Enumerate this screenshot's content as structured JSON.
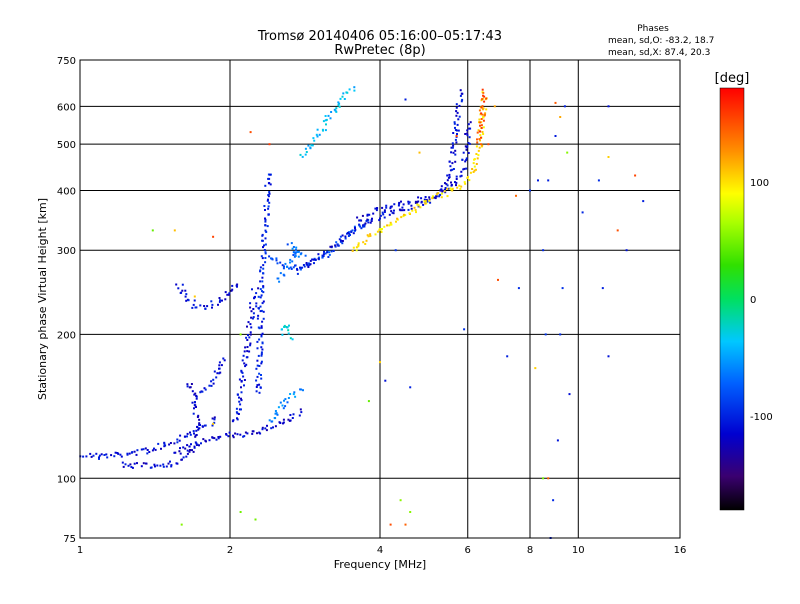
{
  "chart_data": {
    "type": "scatter",
    "title": "Tromsø 20140406 05:16:00–05:17:43",
    "subtitle": "RwPretec (8p)",
    "xlabel": "Frequency [MHz]",
    "ylabel": "Stationary phase Virtual Height [km]",
    "x_scale": "log",
    "y_scale": "log",
    "xlim": [
      1,
      16
    ],
    "ylim": [
      75,
      750
    ],
    "x_ticks": [
      1,
      2,
      4,
      6,
      8,
      10,
      16
    ],
    "x_tick_labels": [
      "1",
      "2",
      "4",
      "6",
      "8",
      "10",
      "16"
    ],
    "x_grid_lines": [
      2,
      4,
      6,
      8,
      10
    ],
    "y_ticks": [
      75,
      100,
      200,
      300,
      400,
      500,
      600,
      750
    ],
    "y_tick_labels": [
      "75",
      "100",
      "200",
      "300",
      "400",
      "500",
      "600",
      "750"
    ],
    "y_grid_lines": [
      100,
      200,
      300,
      400,
      500,
      600
    ],
    "grid": true,
    "stats": {
      "heading": "Phases",
      "line_o": "mean, sd,O: -83.2, 18.7",
      "line_x": "mean, sd,X:  87.4, 20.3"
    },
    "colorbar": {
      "label": "[deg]",
      "min": -180,
      "max": 180,
      "ticks": [
        100,
        0,
        -100
      ],
      "tick_labels": [
        "100",
        "0",
        "-100"
      ]
    },
    "traces": [
      {
        "points": [
          [
            1.0,
            112
          ],
          [
            1.1,
            111
          ],
          [
            1.2,
            112
          ],
          [
            1.35,
            114
          ],
          [
            1.5,
            118
          ],
          [
            1.62,
            123
          ],
          [
            1.75,
            128
          ],
          [
            1.9,
            133
          ]
        ],
        "phase": -110
      },
      {
        "points": [
          [
            1.22,
            107
          ],
          [
            1.35,
            106
          ],
          [
            1.5,
            107
          ],
          [
            1.6,
            109
          ],
          [
            1.68,
            115
          ],
          [
            1.72,
            128
          ],
          [
            1.7,
            145
          ],
          [
            1.66,
            160
          ]
        ],
        "phase": -115
      },
      {
        "points": [
          [
            1.72,
            150
          ],
          [
            1.8,
            155
          ],
          [
            1.88,
            165
          ],
          [
            1.94,
            180
          ]
        ],
        "phase": -110
      },
      {
        "points": [
          [
            1.55,
            112
          ],
          [
            1.7,
            118
          ],
          [
            1.85,
            122
          ],
          [
            2.0,
            123
          ],
          [
            2.2,
            124
          ],
          [
            2.4,
            128
          ],
          [
            2.6,
            132
          ],
          [
            2.8,
            138
          ]
        ],
        "phase": -115
      },
      {
        "points": [
          [
            2.05,
            130
          ],
          [
            2.1,
            150
          ],
          [
            2.15,
            175
          ],
          [
            2.18,
            200
          ],
          [
            2.22,
            225
          ],
          [
            2.25,
            250
          ]
        ],
        "phase": -110
      },
      {
        "points": [
          [
            2.28,
            150
          ],
          [
            2.3,
            200
          ],
          [
            2.32,
            260
          ],
          [
            2.35,
            330
          ],
          [
            2.38,
            390
          ],
          [
            2.4,
            440
          ]
        ],
        "phase": -100
      },
      {
        "points": [
          [
            2.4,
            130
          ],
          [
            2.5,
            140
          ],
          [
            2.6,
            145
          ],
          [
            2.7,
            150
          ],
          [
            2.8,
            155
          ]
        ],
        "phase": -60
      },
      {
        "points": [
          [
            1.58,
            255
          ],
          [
            1.62,
            240
          ],
          [
            1.7,
            230
          ],
          [
            1.78,
            228
          ],
          [
            1.85,
            232
          ],
          [
            1.92,
            235
          ],
          [
            2.0,
            245
          ],
          [
            2.1,
            255
          ]
        ],
        "phase": -110
      },
      {
        "points": [
          [
            2.4,
            290
          ],
          [
            2.55,
            280
          ],
          [
            2.7,
            275
          ],
          [
            2.85,
            278
          ],
          [
            3.0,
            285
          ],
          [
            3.2,
            300
          ],
          [
            3.4,
            320
          ],
          [
            3.6,
            335
          ],
          [
            3.8,
            345
          ]
        ],
        "phase": -85
      },
      {
        "points": [
          [
            2.5,
            260
          ],
          [
            2.7,
            300
          ],
          [
            2.8,
            290
          ],
          [
            2.6,
            310
          ]
        ],
        "phase": -70
      },
      {
        "points": [
          [
            2.7,
            270
          ],
          [
            3.0,
            290
          ],
          [
            3.3,
            310
          ],
          [
            3.6,
            335
          ],
          [
            3.9,
            350
          ],
          [
            4.2,
            360
          ],
          [
            4.6,
            370
          ],
          [
            5.0,
            380
          ],
          [
            5.3,
            395
          ],
          [
            5.5,
            420
          ],
          [
            5.6,
            470
          ],
          [
            5.7,
            540
          ],
          [
            5.75,
            600
          ],
          [
            5.8,
            650
          ]
        ],
        "phase": -110
      },
      {
        "points": [
          [
            3.6,
            345
          ],
          [
            4.0,
            365
          ],
          [
            4.5,
            375
          ],
          [
            5.0,
            385
          ],
          [
            5.4,
            400
          ],
          [
            5.7,
            420
          ],
          [
            5.9,
            450
          ],
          [
            6.0,
            500
          ],
          [
            6.0,
            560
          ]
        ],
        "phase": -115
      },
      {
        "points": [
          [
            3.5,
            300
          ],
          [
            3.8,
            320
          ],
          [
            4.2,
            340
          ],
          [
            4.6,
            360
          ],
          [
            5.0,
            380
          ],
          [
            5.4,
            395
          ],
          [
            5.8,
            410
          ],
          [
            6.1,
            430
          ],
          [
            6.3,
            480
          ],
          [
            6.4,
            550
          ],
          [
            6.5,
            640
          ]
        ],
        "phase": 100
      },
      {
        "points": [
          [
            6.3,
            500
          ],
          [
            6.4,
            560
          ],
          [
            6.45,
            620
          ],
          [
            6.5,
            650
          ]
        ],
        "phase": 150
      },
      {
        "points": [
          [
            2.8,
            470
          ],
          [
            3.0,
            520
          ],
          [
            3.2,
            580
          ],
          [
            3.4,
            630
          ],
          [
            3.55,
            660
          ]
        ],
        "phase": -40
      },
      {
        "points": [
          [
            2.55,
            200
          ],
          [
            2.6,
            210
          ],
          [
            2.65,
            195
          ]
        ],
        "phase": -30
      }
    ],
    "scatter": [
      {
        "points": [
          [
            8.9,
            90
          ],
          [
            9.1,
            120
          ],
          [
            8.8,
            75
          ],
          [
            9.4,
            600
          ],
          [
            8.5,
            300
          ],
          [
            8.6,
            200
          ],
          [
            9.3,
            250
          ],
          [
            8.7,
            420
          ],
          [
            9.0,
            520
          ],
          [
            11.0,
            420
          ],
          [
            11.2,
            250
          ],
          [
            12.5,
            300
          ],
          [
            13.5,
            380
          ],
          [
            11.5,
            600
          ],
          [
            8.3,
            420
          ],
          [
            9.6,
            150
          ],
          [
            10.2,
            360
          ],
          [
            4.3,
            300
          ],
          [
            4.5,
            620
          ],
          [
            4.1,
            160
          ],
          [
            4.6,
            155
          ],
          [
            7.2,
            180
          ],
          [
            7.6,
            250
          ],
          [
            5.9,
            205
          ],
          [
            8.0,
            400
          ],
          [
            9.2,
            200
          ],
          [
            11.5,
            180
          ]
        ],
        "phase": -100
      },
      {
        "points": [
          [
            2.2,
            530
          ],
          [
            2.4,
            500
          ],
          [
            1.85,
            320
          ],
          [
            4.2,
            80
          ],
          [
            4.5,
            80
          ],
          [
            5.7,
            520
          ],
          [
            9.0,
            610
          ],
          [
            8.7,
            100
          ],
          [
            12.0,
            330
          ],
          [
            13.0,
            430
          ],
          [
            6.6,
            500
          ],
          [
            6.9,
            260
          ],
          [
            7.5,
            390
          ]
        ],
        "phase": 150
      },
      {
        "points": [
          [
            1.7,
            240
          ],
          [
            1.85,
            130
          ],
          [
            1.55,
            330
          ],
          [
            4.0,
            175
          ],
          [
            4.8,
            480
          ],
          [
            6.8,
            600
          ],
          [
            11.5,
            470
          ],
          [
            9.2,
            570
          ],
          [
            8.2,
            170
          ]
        ],
        "phase": 110
      },
      {
        "points": [
          [
            2.1,
            85
          ],
          [
            2.25,
            82
          ],
          [
            2.1,
            200
          ],
          [
            1.4,
            330
          ],
          [
            1.6,
            80
          ],
          [
            4.6,
            85
          ],
          [
            4.4,
            90
          ],
          [
            3.8,
            145
          ],
          [
            8.5,
            100
          ],
          [
            9.5,
            480
          ]
        ],
        "phase": 50
      }
    ]
  }
}
